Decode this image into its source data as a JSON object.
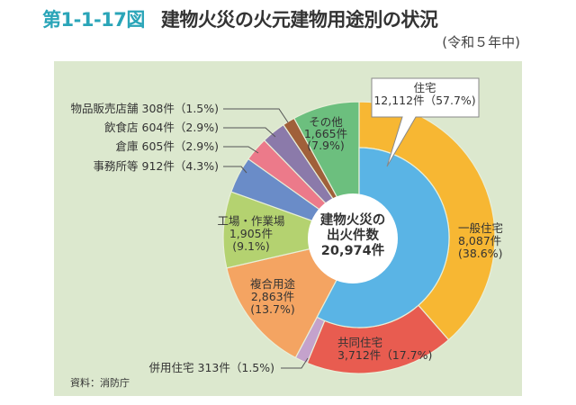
{
  "header": {
    "figure_number": "第1-1-17図",
    "title": "建物火災の火元建物用途別の状況",
    "subtitle": "(令和５年中)"
  },
  "source": "資料：消防庁",
  "chart_data": {
    "type": "pie",
    "title": "建物火災の火元建物用途別の状況",
    "subtitle": "(令和５年中)",
    "center_label": [
      "建物火災の",
      "出火件数",
      "20,974件"
    ],
    "total": 20974,
    "unit": "件",
    "outer_ring": [
      {
        "name": "一般住宅",
        "value": 8087,
        "percent": 38.6,
        "color": "#f7b733",
        "label": [
          "一般住宅",
          "8,087件",
          "(38.6%)"
        ]
      },
      {
        "name": "共同住宅",
        "value": 3712,
        "percent": 17.7,
        "color": "#e85c50",
        "label": [
          "共同住宅",
          "3,712件（17.7%)"
        ]
      },
      {
        "name": "併用住宅",
        "value": 313,
        "percent": 1.5,
        "color": "#c4a2cc",
        "label": [
          "併用住宅 313件（1.5%)"
        ]
      },
      {
        "name": "複合用途",
        "value": 2863,
        "percent": 13.7,
        "color": "#f4a462",
        "label": [
          "複合用途",
          "2,863件",
          "(13.7%)"
        ]
      },
      {
        "name": "工場・作業場",
        "value": 1905,
        "percent": 9.1,
        "color": "#b4d270",
        "label": [
          "工場・作業場",
          "1,905件",
          "(9.1%)"
        ]
      },
      {
        "name": "事務所等",
        "value": 912,
        "percent": 4.3,
        "color": "#6a8cc8",
        "label": [
          "事務所等 912件（4.3%)"
        ]
      },
      {
        "name": "倉庫",
        "value": 605,
        "percent": 2.9,
        "color": "#ec7a8a",
        "label": [
          "倉庫 605件（2.9%)"
        ]
      },
      {
        "name": "飲食店",
        "value": 604,
        "percent": 2.9,
        "color": "#8b7aaa",
        "label": [
          "飲食店 604件（2.9%)"
        ]
      },
      {
        "name": "物品販売店舗",
        "value": 308,
        "percent": 1.5,
        "color": "#a0603a",
        "label": [
          "物品販売店舗 308件（1.5%)"
        ]
      },
      {
        "name": "その他",
        "value": 1665,
        "percent": 7.9,
        "color": "#6cbf7e",
        "label": [
          "その他",
          "1,665件",
          "(7.9%)"
        ]
      }
    ],
    "inner_ring": [
      {
        "name": "住宅",
        "value": 12112,
        "percent": 57.7,
        "color": "#5ab4e5",
        "label": [
          "住宅",
          "12,112件（57.7%)"
        ]
      }
    ],
    "start_angle": "top (12 o'clock), clockwise"
  }
}
